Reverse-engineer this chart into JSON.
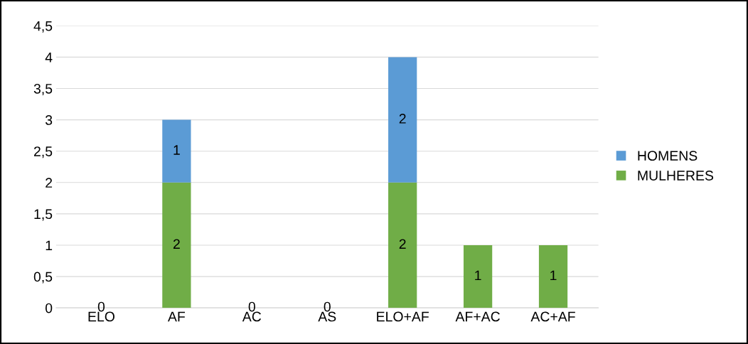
{
  "chart_data": {
    "type": "bar",
    "stacked": true,
    "categories": [
      "ELO",
      "AF",
      "AC",
      "AS",
      "ELO+AF",
      "AF+AC",
      "AC+AF"
    ],
    "series": [
      {
        "name": "MULHERES",
        "color": "#70ad47",
        "values": [
          0,
          2,
          0,
          0,
          2,
          1,
          1
        ],
        "value_labels": [
          "0",
          "2",
          "0",
          "0",
          "2",
          "1",
          "1"
        ]
      },
      {
        "name": "HOMENS",
        "color": "#5b9bd5",
        "values": [
          0,
          1,
          0,
          0,
          2,
          0,
          0
        ],
        "value_labels": [
          null,
          "1",
          null,
          null,
          "2",
          null,
          null
        ]
      }
    ],
    "ylim": [
      0,
      4.5
    ],
    "yticks": [
      0,
      {
        "value": 0.5,
        "label": "0,5"
      },
      1,
      {
        "value": 1.5,
        "label": "1,5"
      },
      2,
      {
        "value": 2.5,
        "label": "2,5"
      },
      3,
      {
        "value": 3.5,
        "label": "3,5"
      },
      4,
      {
        "value": 4.5,
        "label": "4,5"
      }
    ],
    "grid": "y",
    "legend": "right"
  }
}
